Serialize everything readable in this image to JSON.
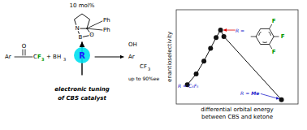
{
  "chart_data": {
    "type": "line",
    "xlabel": "differential orbital energy\nbetween CBS and ketone",
    "ylabel": "enantioselectivity",
    "x": [
      1.0,
      1.8,
      2.5,
      3.1,
      3.6,
      4.0,
      4.3,
      9.5
    ],
    "series": [
      {
        "color": "#111111",
        "marker": "circle",
        "values": [
          1.8,
          2.8,
          4.0,
          5.2,
          6.2,
          6.9,
          6.3,
          0.4
        ]
      }
    ],
    "xlim": [
      0.0,
      11.0
    ],
    "ylim": [
      0.0,
      8.8
    ],
    "tick_labels": false,
    "grid": false,
    "annotations": [
      {
        "text": "10 mol%"
      },
      {
        "text": "N"
      },
      {
        "text": "B"
      },
      {
        "text": "O"
      },
      {
        "text": "Ph"
      },
      {
        "text": "Ph"
      },
      {
        "text": "R",
        "color": "#1a1aff"
      },
      {
        "text": "Ar"
      },
      {
        "text": "O"
      },
      {
        "text": "C"
      },
      {
        "text": "F",
        "color": "#009900"
      },
      {
        "text": "3",
        "color": "#009900"
      },
      {
        "text": "+ BH"
      },
      {
        "text": "3"
      },
      {
        "text": "OH"
      },
      {
        "text": "Ar"
      },
      {
        "text": "CF"
      },
      {
        "text": "3"
      },
      {
        "text": "up to 90%ee"
      },
      {
        "text": "electronic tuning"
      },
      {
        "text": "of CBS catalyst"
      },
      {
        "text": "R = C₆F₅",
        "color": "#2222cc"
      },
      {
        "text": "R =",
        "color": "#2222cc"
      },
      {
        "text": "Me",
        "color": "#2222cc"
      },
      {
        "text": "R =",
        "color": "#2222cc"
      },
      {
        "text": "F",
        "color": "#009900"
      },
      {
        "text": "F",
        "color": "#009900"
      },
      {
        "text": "F",
        "color": "#009900"
      }
    ]
  }
}
